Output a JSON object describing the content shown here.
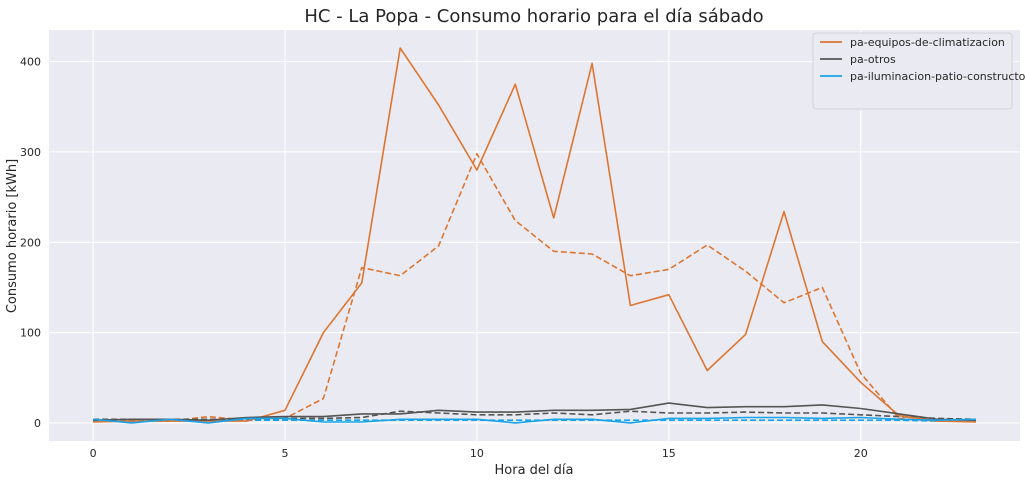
{
  "chart_data": {
    "type": "line",
    "title": "HC - La Popa - Consumo horario para el día sábado",
    "xlabel": "Hora del día",
    "ylabel": "Consumo horario [kWh]",
    "xlim": [
      -1.15,
      24.15
    ],
    "ylim": [
      -20,
      435
    ],
    "xticks": [
      0,
      5,
      10,
      15,
      20
    ],
    "yticks": [
      0,
      100,
      200,
      300,
      400
    ],
    "grid": true,
    "background": "#eaeaf2",
    "legend_position": "top-right",
    "x": [
      0,
      1,
      2,
      3,
      4,
      5,
      6,
      7,
      8,
      9,
      10,
      11,
      12,
      13,
      14,
      15,
      16,
      17,
      18,
      19,
      20,
      21,
      22,
      23
    ],
    "series": [
      {
        "name": "pa-equipos-de-climatizacion",
        "style": "solid",
        "color": "#dd7631",
        "values": [
          1,
          2,
          2,
          2,
          2,
          14,
          100,
          155,
          415,
          352,
          280,
          375,
          227,
          398,
          130,
          142,
          58,
          98,
          234,
          90,
          45,
          8,
          2,
          1
        ]
      },
      {
        "name": "pa-otros",
        "style": "solid",
        "color": "#555555",
        "values": [
          3,
          4,
          4,
          3,
          6,
          7,
          7,
          10,
          10,
          14,
          12,
          12,
          14,
          14,
          15,
          22,
          17,
          18,
          18,
          20,
          16,
          10,
          4,
          3
        ]
      },
      {
        "name": "pa-iluminacion-patio-constructor",
        "style": "solid",
        "color": "#1aa3e8",
        "values": [
          4,
          0,
          4,
          0,
          5,
          5,
          1,
          1,
          4,
          4,
          4,
          0,
          4,
          4,
          0,
          5,
          5,
          6,
          6,
          5,
          6,
          4,
          3,
          4
        ]
      },
      {
        "style": "dashed",
        "color": "#dd7631",
        "values": [
          2,
          2,
          2,
          7,
          3,
          5,
          27,
          172,
          163,
          196,
          298,
          224,
          190,
          187,
          163,
          170,
          197,
          168,
          133,
          150,
          55,
          5,
          2,
          2
        ]
      },
      {
        "style": "dashed",
        "color": "#555555",
        "values": [
          4,
          4,
          4,
          4,
          4,
          5,
          5,
          6,
          13,
          11,
          9,
          9,
          11,
          9,
          13,
          11,
          11,
          12,
          11,
          11,
          9,
          7,
          5,
          4
        ]
      },
      {
        "style": "dashed",
        "color": "#1aa3e8",
        "values": [
          2,
          2,
          3,
          2,
          3,
          3,
          3,
          3,
          3,
          3,
          3,
          3,
          3,
          3,
          3,
          3,
          3,
          3,
          3,
          3,
          3,
          3,
          2,
          2
        ]
      }
    ]
  }
}
